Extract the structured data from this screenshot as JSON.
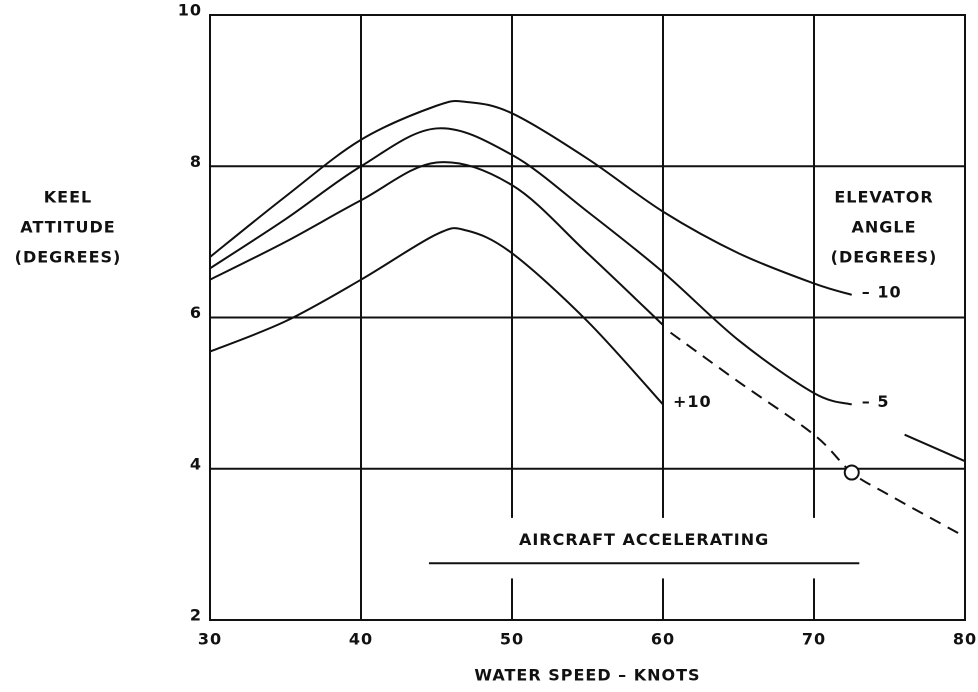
{
  "chart_data": {
    "type": "line",
    "y_label": [
      "KEEL",
      "ATTITUDE",
      "(DEGREES)"
    ],
    "x_label": "WATER   SPEED – KNOTS",
    "legend_title": [
      "ELEVATOR",
      "ANGLE",
      "(DEGREES)"
    ],
    "annotation": "AIRCRAFT    ACCELERATING",
    "xlim": [
      30,
      80
    ],
    "xticks": [
      30,
      40,
      50,
      60,
      70,
      80
    ],
    "ylim": [
      2,
      10
    ],
    "yticks": [
      2,
      4,
      6,
      8,
      10
    ],
    "grid": true,
    "series": [
      {
        "name": "– 10",
        "color": "#111111",
        "x": [
          30,
          35,
          40,
          45,
          47,
          50,
          55,
          60,
          65,
          70,
          72.5
        ],
        "values": [
          6.8,
          7.6,
          8.35,
          8.8,
          8.85,
          8.7,
          8.1,
          7.4,
          6.85,
          6.45,
          6.3
        ]
      },
      {
        "name": "– 5",
        "color": "#111111",
        "x": [
          30,
          35,
          40,
          45,
          50,
          55,
          60,
          65,
          70,
          72.5
        ],
        "values": [
          6.65,
          7.3,
          8.0,
          8.5,
          8.15,
          7.4,
          6.6,
          5.7,
          5.0,
          4.85
        ]
      },
      {
        "color": "#111111",
        "x": [
          30,
          35,
          40,
          45,
          50,
          55,
          60
        ],
        "values": [
          6.5,
          7.0,
          7.55,
          8.05,
          7.75,
          6.85,
          5.9
        ]
      },
      {
        "name": "+10",
        "color": "#111111",
        "x": [
          30,
          35,
          40,
          45,
          47,
          50,
          55,
          60
        ],
        "values": [
          5.55,
          5.95,
          6.5,
          7.1,
          7.15,
          6.85,
          5.95,
          4.85
        ]
      },
      {
        "color": "#111111",
        "dashed": true,
        "x": [
          60.5,
          65,
          70,
          72.5,
          75,
          80
        ],
        "values": [
          5.8,
          5.15,
          4.45,
          3.95,
          3.65,
          3.1
        ]
      },
      {
        "color": "#111111",
        "x": [
          76,
          80
        ],
        "values": [
          4.45,
          4.1
        ]
      },
      {
        "color": "#111111",
        "marker": "circle",
        "x": [
          72.5
        ],
        "values": [
          3.95
        ]
      }
    ]
  }
}
